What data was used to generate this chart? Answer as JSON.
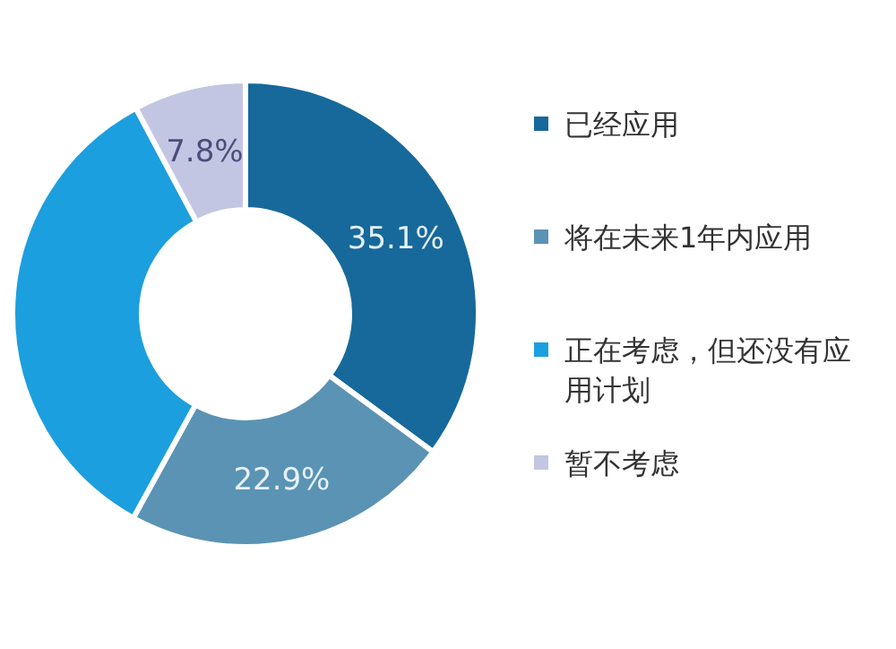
{
  "chart_data": {
    "type": "donut",
    "categories": [
      "已经应用",
      "将在未来1年内应用",
      "正在考虑，但还没有应用计划",
      "暂不考虑"
    ],
    "values": [
      35.1,
      22.9,
      34.2,
      7.8
    ],
    "colors": [
      "#17699b",
      "#5a93b4",
      "#1c9fde",
      "#c3c6e3"
    ],
    "value_labels": [
      "35.1%",
      "22.9%",
      null,
      "7.8%"
    ],
    "legend": "right"
  }
}
